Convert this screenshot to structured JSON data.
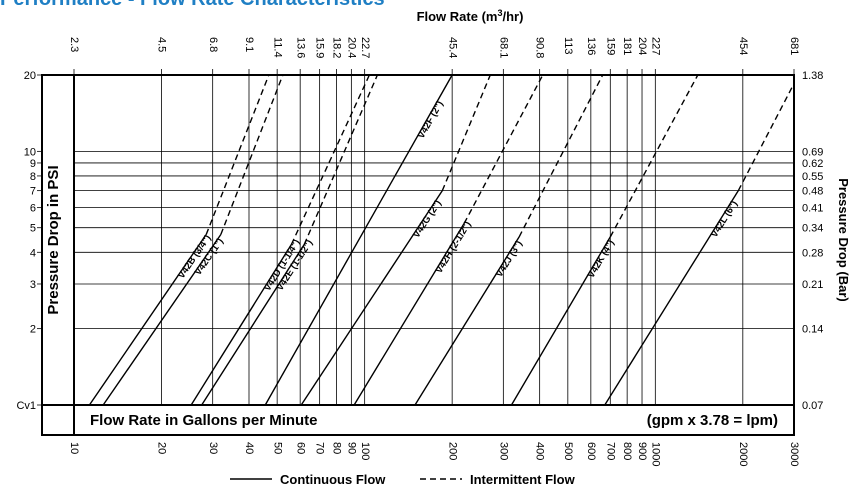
{
  "title": "Performance - Flow Rate Characteristics",
  "top_axis_label": "Flow Rate (m3/hr)",
  "top_axis_base": "Flow Rate (m",
  "top_axis_sup": "3",
  "top_axis_tail": "/hr)",
  "left_axis_label": "Pressure Drop in PSI",
  "right_axis_label": "Pressure Drop (Bar)",
  "bottom_axis_label": "Flow Rate in Gallons per Minute",
  "conversion_note": "(gpm x 3.78 = lpm)",
  "legend": {
    "continuous": "Continuous Flow",
    "intermittent": "Intermittent Flow"
  },
  "colors": {
    "title": "#1f7fc4",
    "lines": "#000000"
  },
  "chart_data": {
    "type": "line",
    "x_scale": "log",
    "y_scale": "log",
    "xlabel": "Flow Rate in Gallons per Minute",
    "ylabel": "Pressure Drop in PSI",
    "xlim": [
      10,
      3000
    ],
    "ylim": [
      1,
      20
    ],
    "x_ticks": [
      {
        "value": 10,
        "label": "10"
      },
      {
        "value": 20,
        "label": "20"
      },
      {
        "value": 30,
        "label": "30"
      },
      {
        "value": 40,
        "label": "40"
      },
      {
        "value": 50,
        "label": "50"
      },
      {
        "value": 60,
        "label": "60"
      },
      {
        "value": 70,
        "label": "70"
      },
      {
        "value": 80,
        "label": "80"
      },
      {
        "value": 90,
        "label": "90"
      },
      {
        "value": 100,
        "label": "100"
      },
      {
        "value": 200,
        "label": "200"
      },
      {
        "value": 300,
        "label": "300"
      },
      {
        "value": 400,
        "label": "400"
      },
      {
        "value": 500,
        "label": "500"
      },
      {
        "value": 600,
        "label": "600"
      },
      {
        "value": 700,
        "label": "700"
      },
      {
        "value": 800,
        "label": "800"
      },
      {
        "value": 900,
        "label": "900"
      },
      {
        "value": 1000,
        "label": "1000"
      },
      {
        "value": 2000,
        "label": "2000"
      },
      {
        "value": 3000,
        "label": "3000"
      }
    ],
    "top_ticks": [
      {
        "value": 10,
        "label": "2.3"
      },
      {
        "value": 20,
        "label": "4.5"
      },
      {
        "value": 30,
        "label": "6.8"
      },
      {
        "value": 40,
        "label": "9.1"
      },
      {
        "value": 50,
        "label": "11.4"
      },
      {
        "value": 60,
        "label": "13.6"
      },
      {
        "value": 70,
        "label": "15.9"
      },
      {
        "value": 80,
        "label": "18.2"
      },
      {
        "value": 90,
        "label": "20.4"
      },
      {
        "value": 100,
        "label": "22.7"
      },
      {
        "value": 200,
        "label": "45.4"
      },
      {
        "value": 300,
        "label": "68.1"
      },
      {
        "value": 400,
        "label": "90.8"
      },
      {
        "value": 500,
        "label": "113"
      },
      {
        "value": 600,
        "label": "136"
      },
      {
        "value": 700,
        "label": "159"
      },
      {
        "value": 800,
        "label": "181"
      },
      {
        "value": 900,
        "label": "204"
      },
      {
        "value": 1000,
        "label": "227"
      },
      {
        "value": 2000,
        "label": "454"
      },
      {
        "value": 3000,
        "label": "681"
      }
    ],
    "y_ticks": [
      {
        "value": 1,
        "label": "Cv1"
      },
      {
        "value": 2,
        "label": "2"
      },
      {
        "value": 3,
        "label": "3"
      },
      {
        "value": 4,
        "label": "4"
      },
      {
        "value": 5,
        "label": "5"
      },
      {
        "value": 6,
        "label": "6"
      },
      {
        "value": 7,
        "label": "7"
      },
      {
        "value": 8,
        "label": "8"
      },
      {
        "value": 9,
        "label": "9"
      },
      {
        "value": 10,
        "label": "10"
      },
      {
        "value": 20,
        "label": "20"
      }
    ],
    "right_ticks": [
      {
        "value": 1,
        "label": "0.07"
      },
      {
        "value": 2,
        "label": "0.14"
      },
      {
        "value": 3,
        "label": "0.21"
      },
      {
        "value": 4,
        "label": "0.28"
      },
      {
        "value": 5,
        "label": "0.34"
      },
      {
        "value": 6,
        "label": "0.41"
      },
      {
        "value": 7,
        "label": "0.48"
      },
      {
        "value": 8,
        "label": "0.55"
      },
      {
        "value": 9,
        "label": "0.62"
      },
      {
        "value": 10,
        "label": "0.69"
      },
      {
        "value": 20,
        "label": "1.38"
      }
    ],
    "series": [
      {
        "name": "V42B (3/4\")",
        "points": [
          [
            11.3,
            1.0
          ],
          [
            28.5,
            4.7
          ]
        ],
        "dash_end": [
          46.8,
          20.0
        ]
      },
      {
        "name": "V42C (1\")",
        "points": [
          [
            12.6,
            1.0
          ],
          [
            32,
            4.7
          ]
        ],
        "dash_end": [
          52.3,
          20.0
        ]
      },
      {
        "name": "V42D (1-1/4\")",
        "points": [
          [
            25.3,
            1.0
          ],
          [
            56,
            4.3
          ]
        ],
        "dash_end": [
          103.8,
          20.0
        ]
      },
      {
        "name": "V42E (1-1/2\")",
        "points": [
          [
            27.5,
            1.0
          ],
          [
            62,
            4.3
          ]
        ],
        "dash_end": [
          110.6,
          20.0
        ]
      },
      {
        "name": "V42F (2\")",
        "points": [
          [
            45.5,
            1.0
          ],
          [
            200,
            20.0
          ]
        ]
      },
      {
        "name": "V42G (2\")",
        "points": [
          [
            60.5,
            1.0
          ],
          [
            185,
            7.0
          ]
        ],
        "dash_end": [
          270.5,
          20.0
        ]
      },
      {
        "name": "V42H (2-1/2\")",
        "points": [
          [
            92,
            1.0
          ],
          [
            220,
            5.2
          ]
        ],
        "dash_end": [
          410,
          20.0
        ]
      },
      {
        "name": "V42J (3\")",
        "points": [
          [
            149,
            1.0
          ],
          [
            340,
            4.6
          ]
        ],
        "dash_end": [
          659,
          20.0
        ]
      },
      {
        "name": "V42K (4\")",
        "points": [
          [
            320,
            1.0
          ],
          [
            700,
            4.6
          ]
        ],
        "dash_end": [
          1400,
          20.0
        ]
      },
      {
        "name": "V42L (6\")",
        "points": [
          [
            670,
            1.0
          ],
          [
            1930,
            7.0
          ]
        ],
        "dash_end": [
          3000,
          18.5
        ]
      }
    ]
  }
}
